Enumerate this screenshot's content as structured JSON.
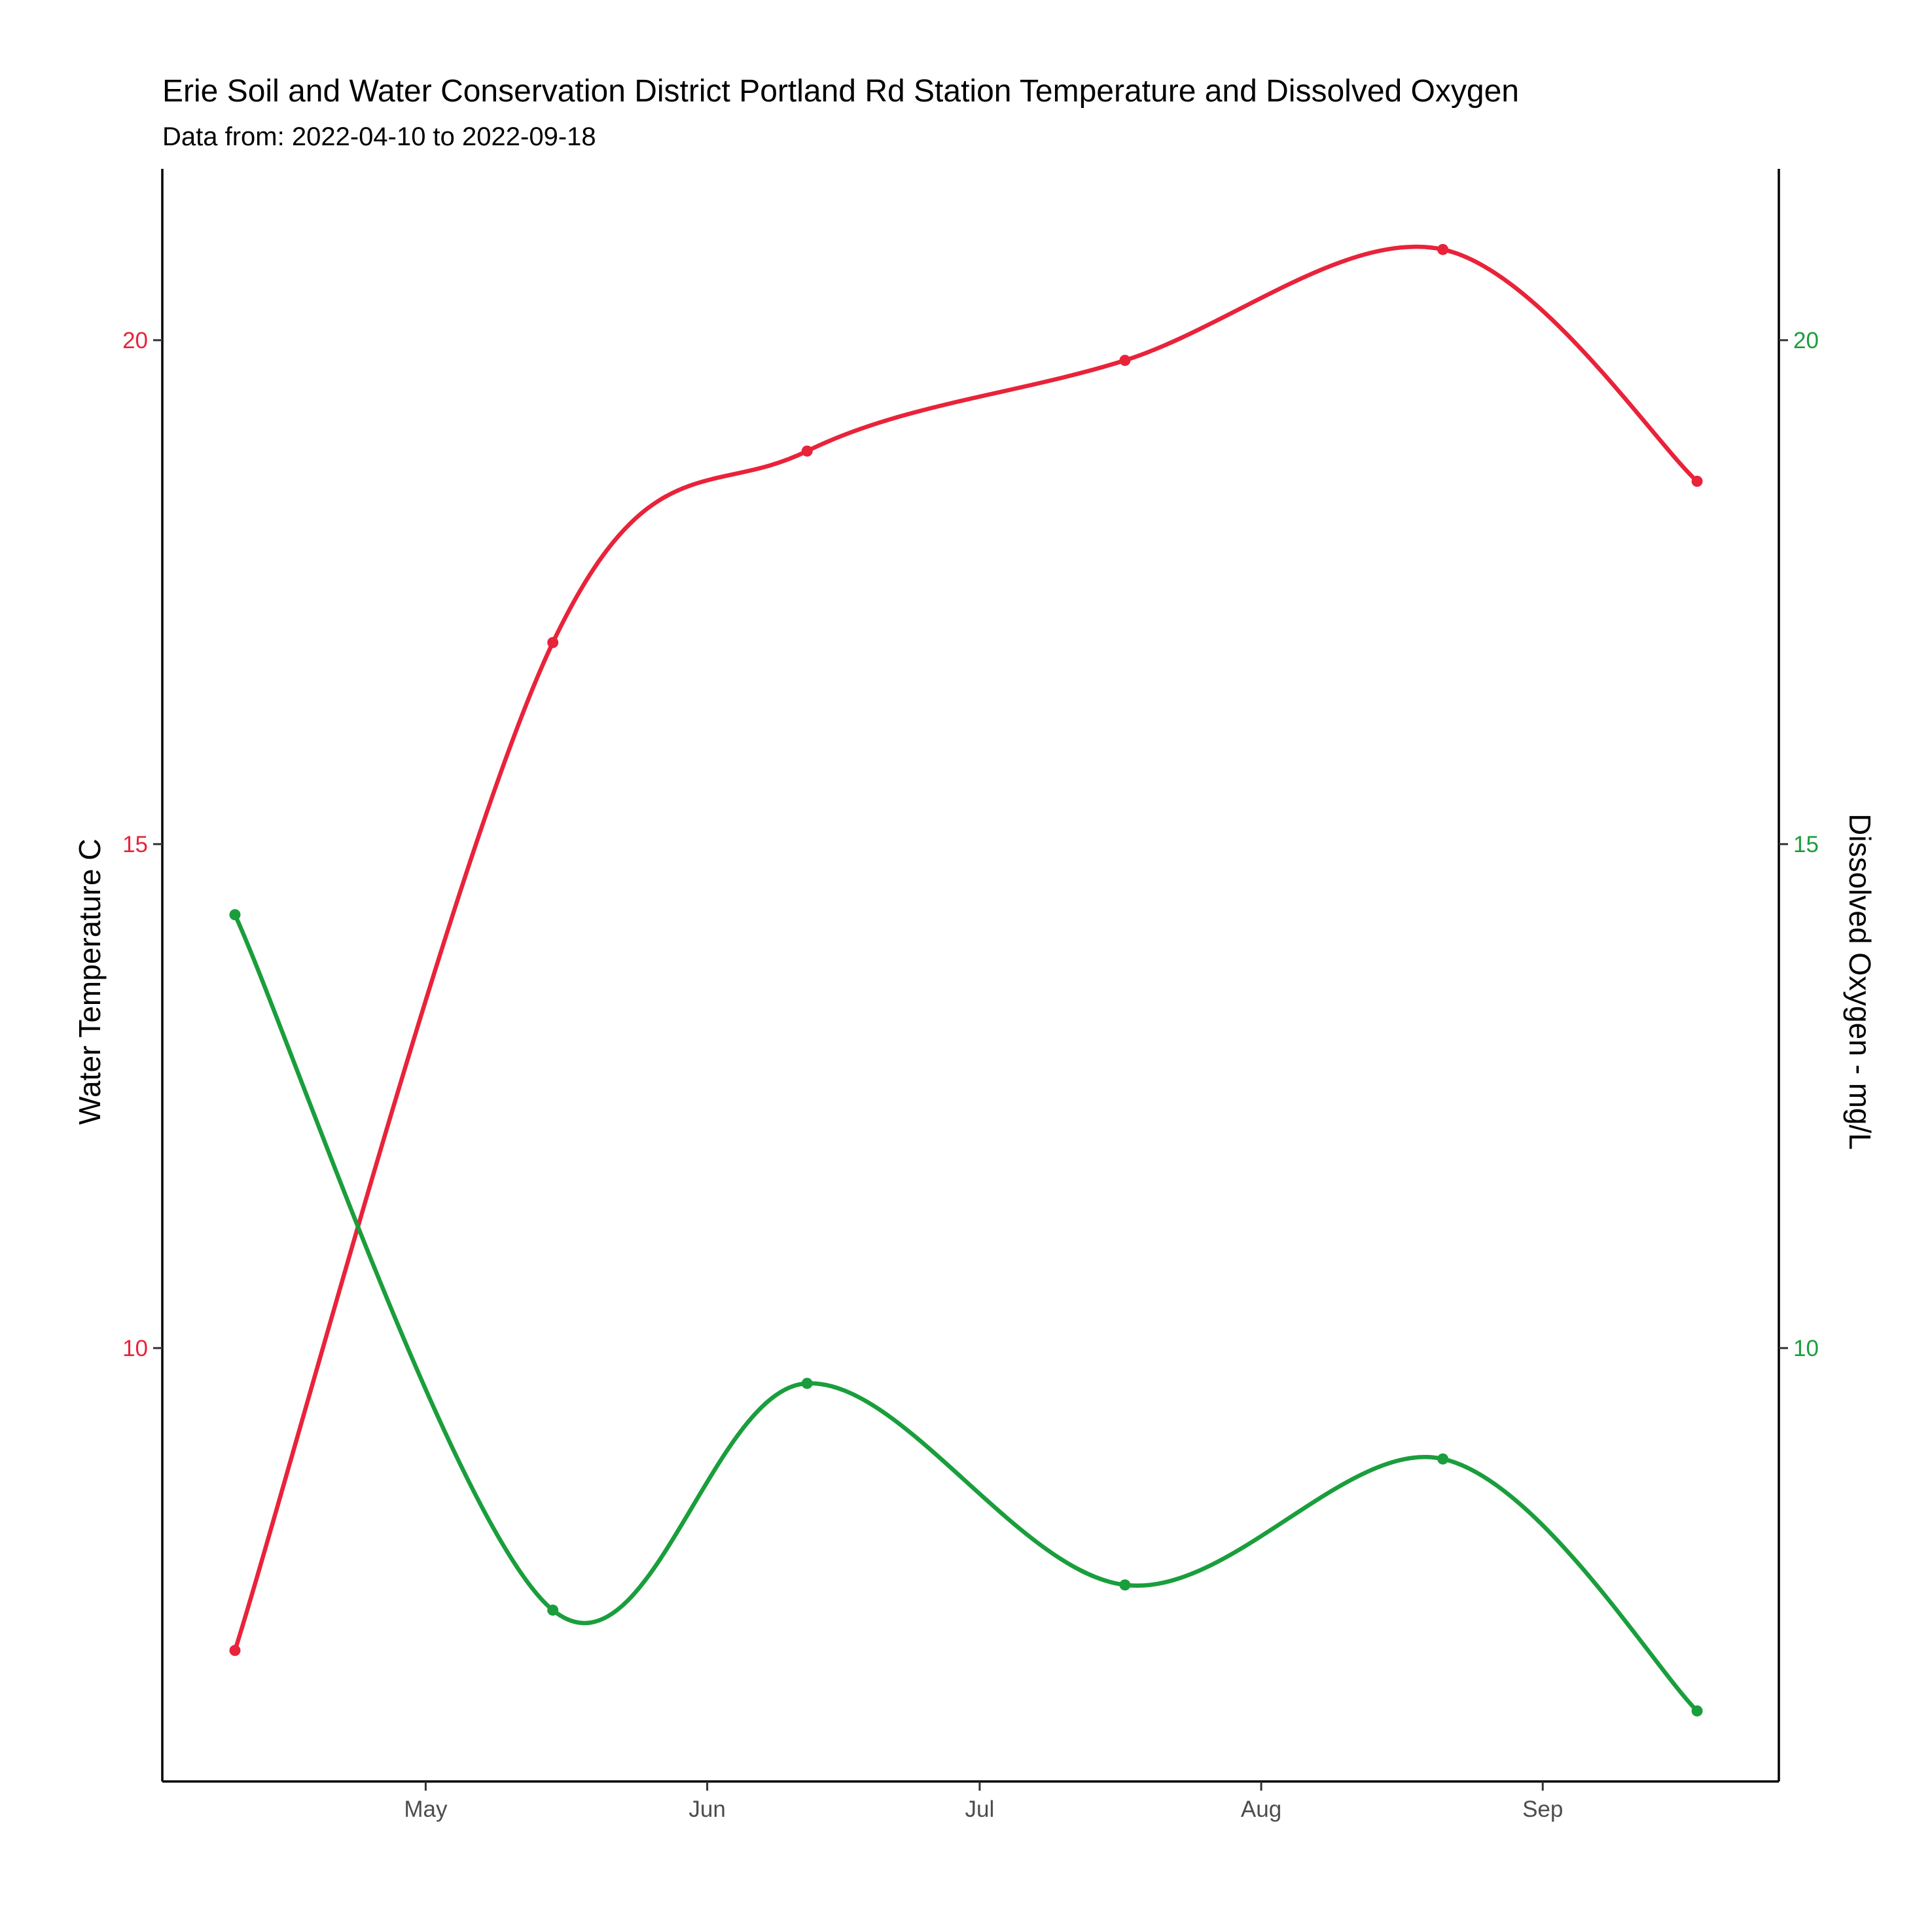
{
  "chart_data": {
    "type": "line",
    "title": "Erie Soil and Water Conservation District Portland Rd Station Temperature and Dissolved Oxygen",
    "subtitle": "Data from: 2022-04-10 to 2022-09-18",
    "x_dates": [
      "2022-04-10",
      "2022-05-15",
      "2022-06-12",
      "2022-07-17",
      "2022-08-21",
      "2022-09-18"
    ],
    "x_range": [
      "2022-04-02",
      "2022-09-27"
    ],
    "x_ticks": [
      {
        "date": "2022-05-01",
        "label": "May"
      },
      {
        "date": "2022-06-01",
        "label": "Jun"
      },
      {
        "date": "2022-07-01",
        "label": "Jul"
      },
      {
        "date": "2022-08-01",
        "label": "Aug"
      },
      {
        "date": "2022-09-01",
        "label": "Sep"
      }
    ],
    "y_left": {
      "label": "Water Temperature C",
      "ticks": [
        10,
        15,
        20
      ],
      "range": [
        5.7,
        21.7
      ],
      "color": "#e8233a"
    },
    "y_right": {
      "label": "Dissolved Oxygen - mg/L",
      "ticks": [
        10,
        15,
        20
      ],
      "range": [
        5.7,
        21.7
      ],
      "color": "#1a9e3c"
    },
    "series": [
      {
        "axis": "left",
        "color": "#e8233a",
        "values": [
          7.0,
          17.0,
          18.9,
          19.8,
          20.9,
          18.6
        ]
      },
      {
        "axis": "right",
        "color": "#1a9e3c",
        "values": [
          14.3,
          7.4,
          9.65,
          7.65,
          8.9,
          6.4
        ]
      }
    ],
    "grid": false,
    "legend": "none"
  }
}
